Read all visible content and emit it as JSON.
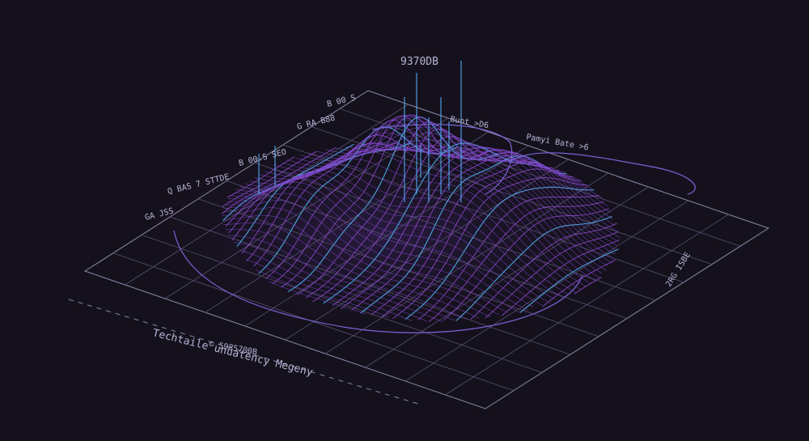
{
  "labels": {
    "peak": "9370DB",
    "top_left_a": "B 00 S",
    "top_left_b": "G RA B88",
    "top_left_c": "B 00.S SEO",
    "left_a": "Q BAS 7 STTDE",
    "left_b": "GA JSS",
    "back_a": "Bunt >D6",
    "back_b": "Pamyi Bate >6",
    "right": "2RG ISBE",
    "front_a": "© 5985700B",
    "front_b": "Techtaile unuatency Megeny"
  }
}
